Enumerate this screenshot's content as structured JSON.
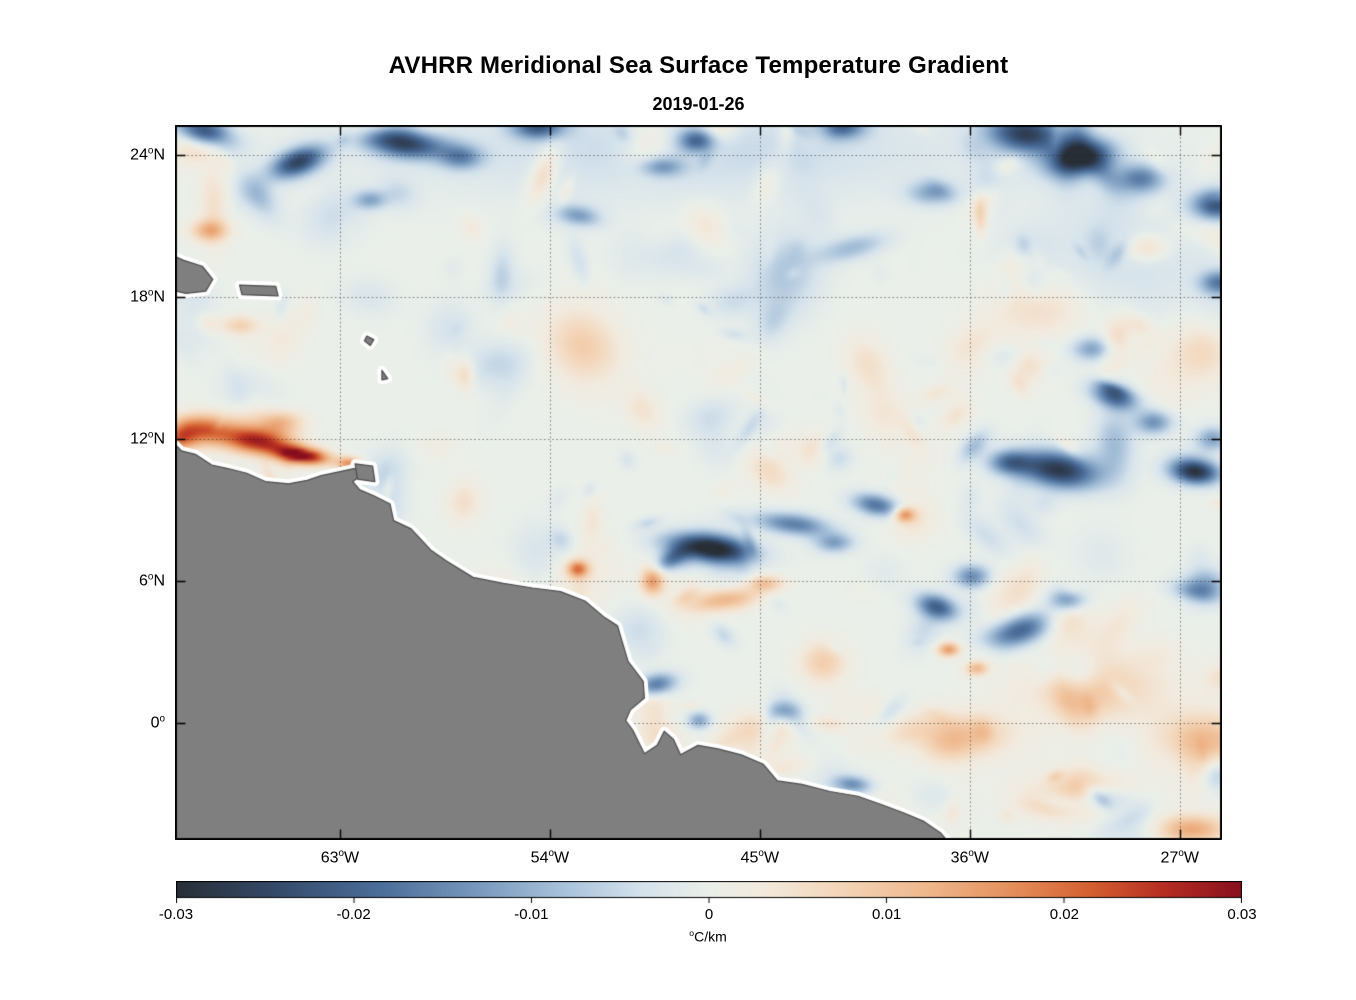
{
  "figure": {
    "title": "AVHRR Meridional Sea Surface Temperature Gradient",
    "subtitle": "2019-01-26"
  },
  "chart_data": {
    "type": "heatmap",
    "title": "AVHRR Meridional Sea Surface Temperature Gradient",
    "date": "2019-01-26",
    "x_axis": {
      "unit": "°W",
      "range": [
        70.07,
        25.19
      ],
      "ticks": [
        {
          "value": 63,
          "label": "63°W"
        },
        {
          "value": 54,
          "label": "54°W"
        },
        {
          "value": 45,
          "label": "45°W"
        },
        {
          "value": 36,
          "label": "36°W"
        },
        {
          "value": 27,
          "label": "27°W"
        }
      ]
    },
    "y_axis": {
      "unit": "°N",
      "range": [
        -4.95,
        25.27
      ],
      "ticks": [
        {
          "value": 24,
          "label": "24°N"
        },
        {
          "value": 18,
          "label": "18°N"
        },
        {
          "value": 12,
          "label": "12°N"
        },
        {
          "value": 6,
          "label": "6°N"
        },
        {
          "value": 0,
          "label": "0°"
        }
      ]
    },
    "colorbar": {
      "label": "°C/km",
      "min": -0.03,
      "max": 0.03,
      "ticks": [
        "-0.03",
        "-0.02",
        "-0.01",
        "0",
        "0.01",
        "0.02",
        "0.03"
      ]
    },
    "grid": "dotted",
    "colors": {
      "land": "#7f7f7f",
      "land_edge": "#4d4d4d",
      "coast_halo": "#ffffff",
      "background": "#ffffff",
      "frame": "#000000",
      "grid": "rgba(30,30,30,0.55)",
      "colormap_stops": [
        [
          -1.0,
          "#282e36"
        ],
        [
          -0.82,
          "#344968"
        ],
        [
          -0.62,
          "#4a6d99"
        ],
        [
          -0.45,
          "#7495ba"
        ],
        [
          -0.28,
          "#a6c0d9"
        ],
        [
          -0.12,
          "#d6e3ec"
        ],
        [
          0.0,
          "#eaefe9"
        ],
        [
          0.1,
          "#f2eade"
        ],
        [
          0.25,
          "#f3d5b8"
        ],
        [
          0.42,
          "#eeb589"
        ],
        [
          0.58,
          "#e48c58"
        ],
        [
          0.72,
          "#d35e30"
        ],
        [
          0.85,
          "#b72e22"
        ],
        [
          1.0,
          "#880f1e"
        ]
      ]
    },
    "land_polygons": [
      {
        "name": "south-america",
        "points": [
          [
            70.6,
            11.1
          ],
          [
            70.2,
            11.9
          ],
          [
            69.8,
            11.5
          ],
          [
            69.2,
            11.35
          ],
          [
            68.5,
            10.9
          ],
          [
            67.8,
            10.75
          ],
          [
            67.0,
            10.55
          ],
          [
            66.2,
            10.2
          ],
          [
            65.2,
            10.1
          ],
          [
            64.4,
            10.25
          ],
          [
            63.8,
            10.45
          ],
          [
            63.1,
            10.6
          ],
          [
            62.4,
            10.75
          ],
          [
            61.95,
            10.55
          ],
          [
            62.45,
            10.2
          ],
          [
            62.15,
            9.85
          ],
          [
            61.55,
            9.6
          ],
          [
            60.85,
            9.25
          ],
          [
            60.7,
            8.55
          ],
          [
            59.95,
            8.2
          ],
          [
            59.1,
            7.3
          ],
          [
            58.45,
            6.85
          ],
          [
            57.3,
            6.15
          ],
          [
            56.0,
            5.9
          ],
          [
            54.75,
            5.7
          ],
          [
            53.55,
            5.55
          ],
          [
            52.5,
            5.15
          ],
          [
            51.65,
            4.45
          ],
          [
            51.1,
            4.1
          ],
          [
            50.65,
            2.6
          ],
          [
            50.0,
            1.75
          ],
          [
            49.95,
            1.05
          ],
          [
            50.55,
            0.55
          ],
          [
            50.75,
            0.1
          ],
          [
            50.45,
            -0.3
          ],
          [
            49.95,
            -1.3
          ],
          [
            49.4,
            -0.95
          ],
          [
            49.1,
            -0.35
          ],
          [
            48.7,
            -0.7
          ],
          [
            48.4,
            -1.35
          ],
          [
            47.65,
            -0.95
          ],
          [
            46.8,
            -1.1
          ],
          [
            45.8,
            -1.35
          ],
          [
            44.85,
            -1.75
          ],
          [
            44.25,
            -2.45
          ],
          [
            43.2,
            -2.6
          ],
          [
            42.0,
            -2.9
          ],
          [
            40.8,
            -3.1
          ],
          [
            39.8,
            -3.45
          ],
          [
            38.85,
            -3.8
          ],
          [
            38.0,
            -4.15
          ],
          [
            37.25,
            -4.65
          ],
          [
            36.7,
            -5.3
          ],
          [
            70.9,
            -5.3
          ]
        ]
      },
      {
        "name": "trinidad",
        "points": [
          [
            62.35,
            10.95
          ],
          [
            61.6,
            10.85
          ],
          [
            61.5,
            10.2
          ],
          [
            62.25,
            10.3
          ]
        ]
      },
      {
        "name": "hispaniola",
        "points": [
          [
            70.5,
            19.9
          ],
          [
            69.7,
            19.55
          ],
          [
            68.9,
            19.3
          ],
          [
            68.45,
            18.75
          ],
          [
            68.75,
            18.25
          ],
          [
            69.6,
            18.15
          ],
          [
            70.5,
            18.35
          ]
        ]
      },
      {
        "name": "puerto-rico",
        "points": [
          [
            67.3,
            18.5
          ],
          [
            65.75,
            18.45
          ],
          [
            65.65,
            18.05
          ],
          [
            67.2,
            18.1
          ]
        ]
      },
      {
        "name": "guadeloupe",
        "points": [
          [
            61.85,
            16.35
          ],
          [
            61.55,
            16.2
          ],
          [
            61.7,
            15.95
          ],
          [
            61.95,
            16.15
          ]
        ]
      },
      {
        "name": "martinique",
        "points": [
          [
            61.2,
            14.9
          ],
          [
            60.95,
            14.55
          ],
          [
            61.2,
            14.5
          ]
        ]
      }
    ],
    "features": [
      [
        68.8,
        25.0,
        -0.026,
        1.3,
        0.6,
        0.3
      ],
      [
        64.8,
        23.7,
        -0.024,
        1.2,
        0.55,
        -0.35
      ],
      [
        60.2,
        24.5,
        -0.026,
        1.7,
        0.6,
        0.1
      ],
      [
        57.8,
        23.9,
        -0.013,
        0.9,
        0.5,
        0
      ],
      [
        54.5,
        25.2,
        -0.02,
        1.1,
        0.5,
        0
      ],
      [
        47.6,
        24.6,
        -0.02,
        0.8,
        0.5,
        0
      ],
      [
        41.5,
        25.2,
        -0.018,
        1.0,
        0.5,
        0
      ],
      [
        33.6,
        24.9,
        -0.026,
        1.6,
        0.8,
        0.1
      ],
      [
        31.3,
        23.9,
        -0.026,
        1.4,
        0.7,
        -0.2
      ],
      [
        28.7,
        23.0,
        -0.015,
        1.0,
        0.6,
        0
      ],
      [
        25.4,
        21.9,
        -0.022,
        1.0,
        0.6,
        0
      ],
      [
        25.3,
        18.6,
        -0.016,
        0.8,
        0.5,
        0
      ],
      [
        61.7,
        22.1,
        -0.011,
        0.7,
        0.4,
        0
      ],
      [
        52.7,
        21.4,
        -0.009,
        0.9,
        0.4,
        0.2
      ],
      [
        49.2,
        23.5,
        -0.011,
        0.9,
        0.4,
        0
      ],
      [
        37.6,
        22.4,
        -0.011,
        1.0,
        0.5,
        0
      ],
      [
        30.7,
        15.8,
        -0.012,
        0.9,
        0.5,
        0
      ],
      [
        29.8,
        13.8,
        -0.02,
        1.0,
        0.5,
        0.3
      ],
      [
        28.1,
        12.7,
        -0.014,
        0.8,
        0.5,
        0
      ],
      [
        32.2,
        10.7,
        -0.028,
        1.7,
        0.75,
        0.15
      ],
      [
        34.3,
        11.0,
        -0.016,
        0.9,
        0.5,
        0
      ],
      [
        26.3,
        10.6,
        -0.026,
        1.0,
        0.5,
        0.1
      ],
      [
        25.6,
        12.0,
        -0.012,
        0.7,
        0.5,
        0
      ],
      [
        47.2,
        7.4,
        -0.028,
        1.8,
        0.55,
        0.12
      ],
      [
        48.8,
        6.9,
        -0.015,
        0.7,
        0.4,
        -0.5
      ],
      [
        43.6,
        8.4,
        -0.016,
        1.6,
        0.45,
        0.12
      ],
      [
        40.0,
        9.2,
        -0.018,
        1.0,
        0.45,
        0.2
      ],
      [
        41.8,
        7.6,
        -0.012,
        0.8,
        0.4,
        0
      ],
      [
        37.4,
        4.9,
        -0.02,
        0.9,
        0.5,
        0.3
      ],
      [
        33.9,
        3.9,
        -0.022,
        1.4,
        0.65,
        -0.3
      ],
      [
        31.8,
        5.2,
        -0.015,
        0.8,
        0.5,
        0
      ],
      [
        35.9,
        6.2,
        -0.013,
        0.8,
        0.5,
        0
      ],
      [
        25.9,
        5.8,
        -0.012,
        0.9,
        0.7,
        0
      ],
      [
        49.5,
        1.6,
        -0.018,
        0.9,
        0.45,
        -0.2
      ],
      [
        47.6,
        0.1,
        -0.012,
        0.5,
        0.35,
        0
      ],
      [
        41.0,
        -2.6,
        -0.013,
        0.8,
        0.35,
        0.1
      ],
      [
        44.0,
        0.5,
        -0.009,
        0.7,
        0.4,
        0
      ],
      [
        30.2,
        -3.2,
        -0.009,
        1.0,
        0.5,
        0
      ],
      [
        48.0,
        24.2,
        -0.005,
        12.0,
        2.0,
        0
      ],
      [
        29.0,
        20.0,
        -0.004,
        4.0,
        3.0,
        0
      ],
      [
        64.6,
        11.3,
        0.032,
        1.1,
        0.35,
        0.12
      ],
      [
        66.5,
        11.9,
        0.026,
        1.5,
        0.55,
        0.1
      ],
      [
        68.8,
        12.4,
        0.02,
        1.2,
        0.65,
        0
      ],
      [
        69.9,
        12.0,
        0.016,
        0.7,
        0.5,
        0
      ],
      [
        65.6,
        12.7,
        0.012,
        1.0,
        0.5,
        0
      ],
      [
        62.6,
        10.95,
        0.018,
        0.5,
        0.28,
        0
      ],
      [
        52.8,
        6.5,
        0.018,
        0.45,
        0.35,
        0
      ],
      [
        49.6,
        6.0,
        0.016,
        0.5,
        0.6,
        0
      ],
      [
        46.5,
        5.2,
        0.012,
        1.4,
        0.45,
        -0.15
      ],
      [
        44.8,
        5.9,
        0.01,
        0.8,
        0.35,
        0
      ],
      [
        38.8,
        8.8,
        0.016,
        0.45,
        0.3,
        0
      ],
      [
        36.9,
        3.1,
        0.016,
        0.5,
        0.3,
        0
      ],
      [
        35.7,
        2.3,
        0.012,
        0.5,
        0.3,
        0
      ],
      [
        30.5,
        1.5,
        0.008,
        3.0,
        1.5,
        0
      ],
      [
        26.0,
        -0.8,
        0.012,
        2.0,
        1.2,
        0
      ],
      [
        26.5,
        -4.5,
        0.014,
        1.5,
        0.6,
        0
      ],
      [
        68.6,
        20.8,
        0.012,
        0.8,
        0.45,
        0
      ],
      [
        67.3,
        16.8,
        0.008,
        0.8,
        0.4,
        0
      ],
      [
        28.4,
        20.1,
        0.008,
        1.0,
        0.6,
        0
      ],
      [
        33.0,
        17.5,
        0.006,
        2.0,
        1.2,
        0
      ],
      [
        36.0,
        -0.5,
        0.008,
        2.0,
        1.0,
        0
      ],
      [
        31.0,
        -3.0,
        0.008,
        2.5,
        1.0,
        0
      ]
    ],
    "texture": {
      "seed": 42,
      "fine_count": 300,
      "fine_amp": 0.0055,
      "fine_rmin": 0.3,
      "fine_rmax": 1.3,
      "medium_count": 70,
      "medium_amp": 0.009,
      "medium_rmin": 0.5,
      "medium_rmax": 1.8
    }
  }
}
